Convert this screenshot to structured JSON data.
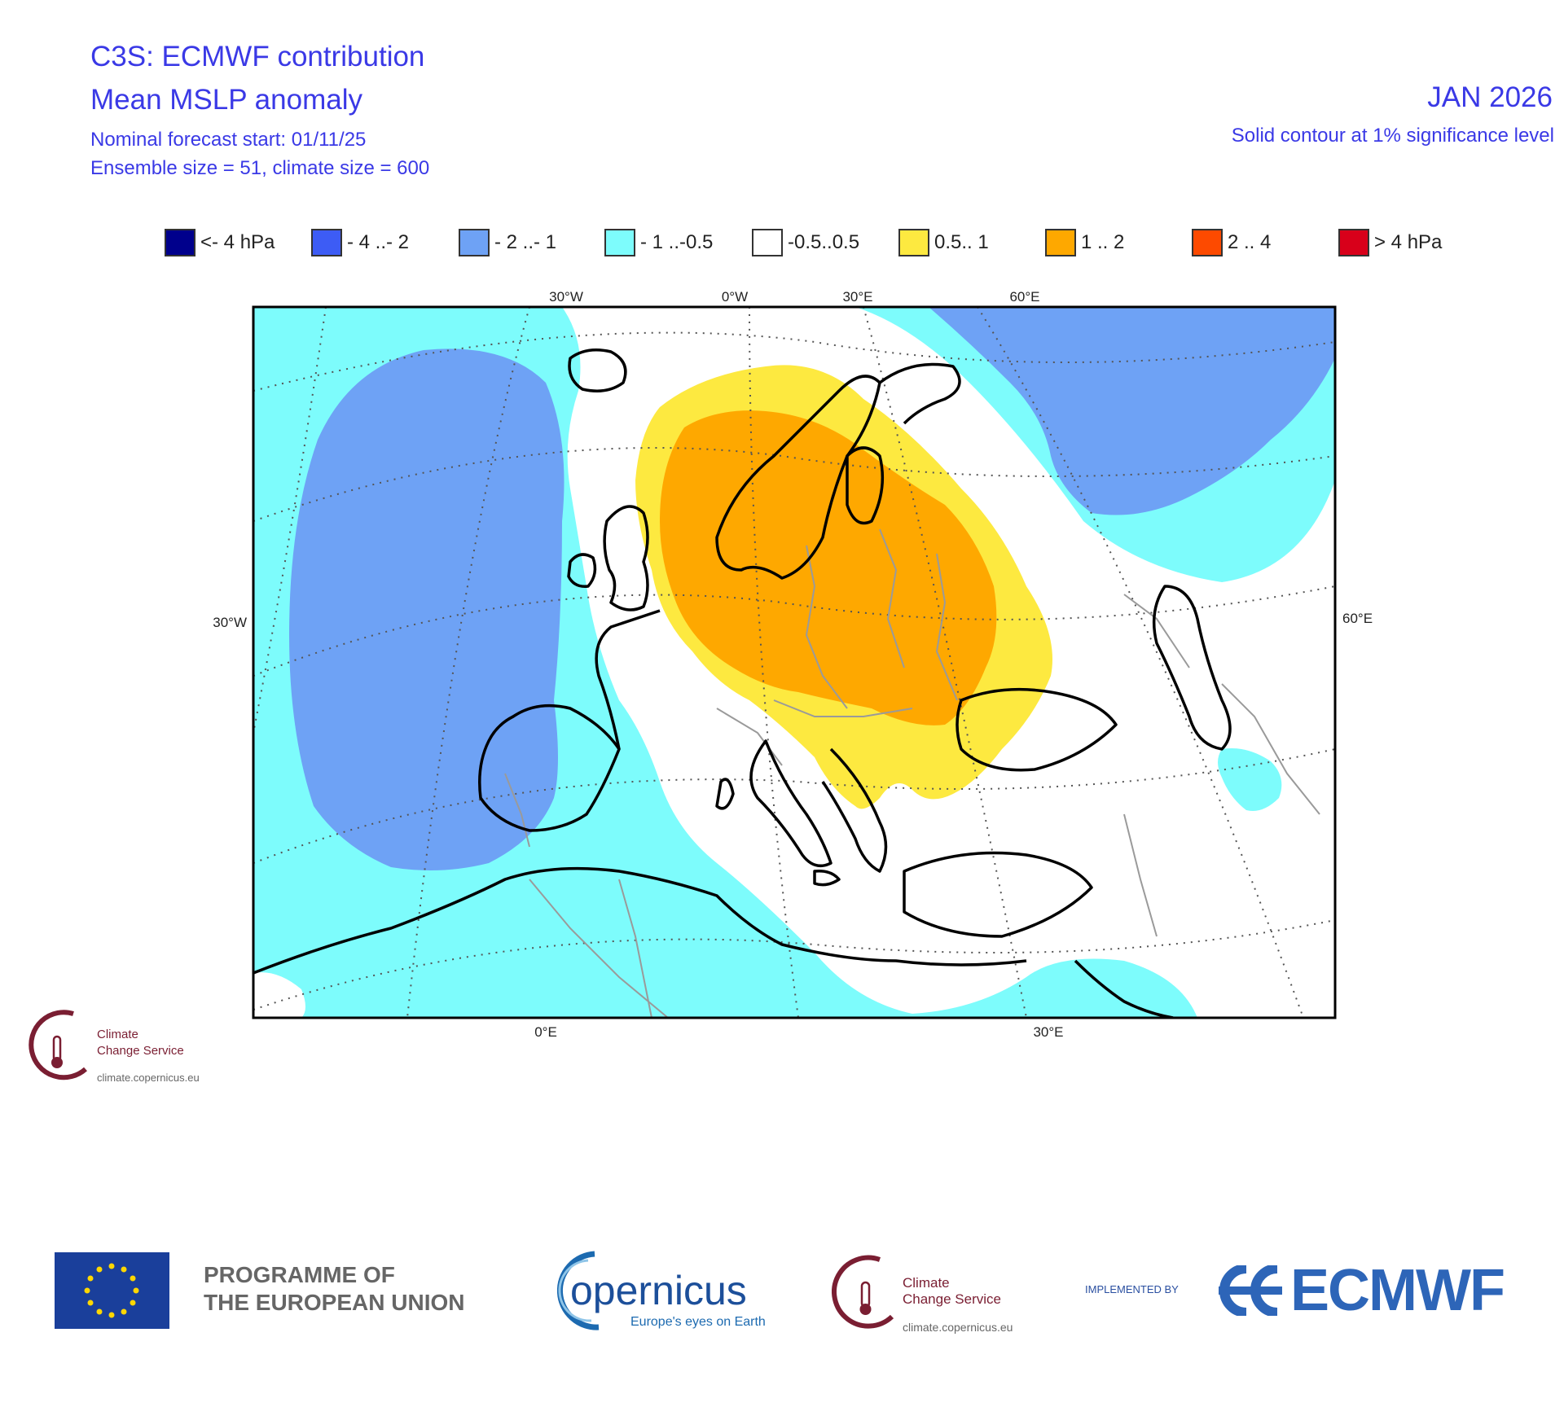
{
  "header": {
    "title": "C3S: ECMWF contribution",
    "subtitle": "Mean MSLP anomaly",
    "forecast_start": "Nominal forecast start: 01/11/25",
    "ensemble": "Ensemble size = 51, climate size = 600",
    "month": "JAN 2026",
    "significance": "Solid contour at 1% significance level"
  },
  "legend": [
    {
      "label": "<- 4 hPa",
      "color": "#00008c"
    },
    {
      "label": "- 4 ..- 2",
      "color": "#3d5cf5"
    },
    {
      "label": "- 2 ..- 1",
      "color": "#6ea2f5"
    },
    {
      "label": "- 1 ..-0.5",
      "color": "#7dfcfc"
    },
    {
      "label": "-0.5..0.5",
      "color": "#ffffff"
    },
    {
      "label": "0.5.. 1",
      "color": "#fde940"
    },
    {
      "label": "1 .. 2",
      "color": "#fea800"
    },
    {
      "label": "2 .. 4",
      "color": "#fd4a00"
    },
    {
      "label": ">  4 hPa",
      "color": "#d8001a"
    }
  ],
  "map_axes": {
    "top": [
      "30°W",
      "0°W",
      "30°E",
      "60°E"
    ],
    "left": "30°W",
    "right": "60°E",
    "bottom": [
      "0°E",
      "30°E"
    ]
  },
  "logos": {
    "c3s_name_line1": "Climate",
    "c3s_name_line2": "Change Service",
    "c3s_url": "climate.copernicus.eu",
    "programme_line1": "PROGRAMME OF",
    "programme_line2": "THE EUROPEAN UNION",
    "copernicus_word": "opernicus",
    "copernicus_tag": "Europe's eyes on Earth",
    "implemented_by": "IMPLEMENTED BY",
    "ecmwf": "ECMWF"
  },
  "colors": {
    "text_blue": "#3a39e6",
    "eu_blue": "#1a3f9b",
    "eu_star": "#ffd700",
    "c3s_maroon": "#7a1e32",
    "ecmwf_blue": "#2d65b8"
  }
}
